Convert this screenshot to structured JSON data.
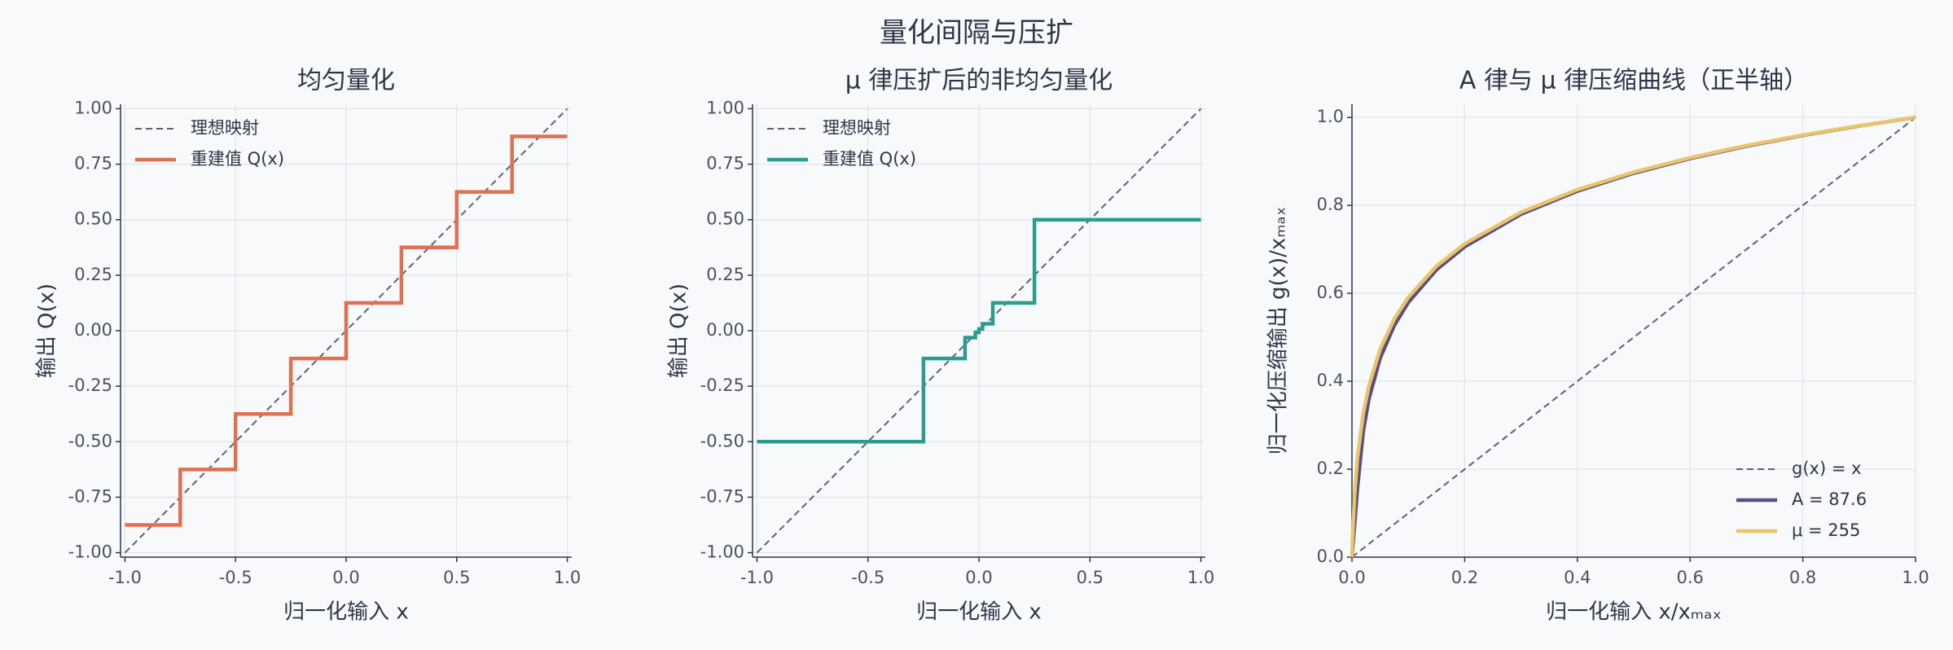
{
  "title": "量化间隔与压扩",
  "chart_data": [
    {
      "type": "line",
      "title": "均匀量化",
      "xlabel": "归一化输入 x",
      "ylabel": "输出 Q(x)",
      "xlim": [
        -1.02,
        1.02
      ],
      "ylim": [
        -1.02,
        1.02
      ],
      "grid": true,
      "legend": "upper left",
      "xticks": [
        {
          "value": -1,
          "label": "-1.0"
        },
        -0.5,
        {
          "value": 0,
          "label": "0.0"
        },
        0.5,
        {
          "value": 1,
          "label": "1.0"
        }
      ],
      "yticks": [
        {
          "value": 1,
          "label": "1.00"
        },
        0.75,
        {
          "value": 0.5,
          "label": "0.50"
        },
        0.25,
        {
          "value": 0,
          "label": "0.00"
        },
        -0.25,
        {
          "value": -0.5,
          "label": "-0.50"
        },
        -0.75,
        {
          "value": -1,
          "label": "-1.00"
        }
      ],
      "series": [
        {
          "name": "理想映射",
          "color": "#5d6175",
          "style": "dashed",
          "x": [
            -1,
            1
          ],
          "values": [
            -1,
            1
          ]
        },
        {
          "name": "重建值 Q(x)",
          "color": "#e07052",
          "style": "solid",
          "x": [
            -1,
            -0.75,
            -0.75,
            -0.5,
            -0.5,
            -0.25,
            -0.25,
            0,
            0,
            0.25,
            0.25,
            0.5,
            0.5,
            0.75,
            0.75,
            1
          ],
          "values": [
            -0.875,
            -0.875,
            -0.625,
            -0.625,
            -0.375,
            -0.375,
            -0.125,
            -0.125,
            0.125,
            0.125,
            0.375,
            0.375,
            0.625,
            0.625,
            0.875,
            0.875
          ]
        }
      ]
    },
    {
      "type": "line",
      "title": "μ 律压扩后的非均匀量化",
      "xlabel": "归一化输入 x",
      "ylabel": "输出 Q(x)",
      "xlim": [
        -1.02,
        1.02
      ],
      "ylim": [
        -1.02,
        1.02
      ],
      "grid": true,
      "legend": "upper left",
      "xticks": [
        {
          "value": -1,
          "label": "-1.0"
        },
        -0.5,
        {
          "value": 0,
          "label": "0.0"
        },
        0.5,
        {
          "value": 1,
          "label": "1.0"
        }
      ],
      "yticks": [
        {
          "value": 1,
          "label": "1.00"
        },
        0.75,
        {
          "value": 0.5,
          "label": "0.50"
        },
        0.25,
        {
          "value": 0,
          "label": "0.00"
        },
        -0.25,
        {
          "value": -0.5,
          "label": "-0.50"
        },
        -0.75,
        {
          "value": -1,
          "label": "-1.00"
        }
      ],
      "series": [
        {
          "name": "理想映射",
          "color": "#5d6175",
          "style": "dashed",
          "x": [
            -1,
            1
          ],
          "values": [
            -1,
            1
          ]
        },
        {
          "name": "重建值 Q(x)",
          "color": "#2a9d8f",
          "style": "solid",
          "x": [
            -1,
            -0.25,
            -0.25,
            -0.0625,
            -0.0625,
            -0.016,
            -0.016,
            0,
            0,
            0.016,
            0.016,
            0.0625,
            0.0625,
            0.25,
            0.25,
            1
          ],
          "values": [
            -0.5,
            -0.5,
            -0.125,
            -0.125,
            -0.031,
            -0.031,
            -0.008,
            -0.008,
            0.008,
            0.008,
            0.031,
            0.031,
            0.125,
            0.125,
            0.5,
            0.5
          ]
        }
      ]
    },
    {
      "type": "line",
      "title": "A 律与 μ 律压缩曲线（正半轴）",
      "xlabel": "归一化输入 x/xₘₐₓ",
      "ylabel": "归一化压缩输出 g(x)/xₘₐₓ",
      "xlim": [
        0,
        1
      ],
      "ylim": [
        0,
        1.03
      ],
      "grid": true,
      "legend": "lower right",
      "xticks": [
        {
          "value": 0,
          "label": "0.0"
        },
        0.2,
        0.4,
        0.6,
        0.8,
        {
          "value": 1,
          "label": "1.0"
        }
      ],
      "yticks": [
        {
          "value": 0,
          "label": "0.0"
        },
        0.2,
        0.4,
        0.6,
        0.8,
        {
          "value": 1,
          "label": "1.0"
        }
      ],
      "series": [
        {
          "name": "g(x) = x",
          "color": "#5d6175",
          "style": "dashed",
          "x": [
            0,
            1
          ],
          "values": [
            0,
            1
          ]
        },
        {
          "name": "A = 87.6",
          "color": "#5b4e80",
          "style": "solid",
          "x": [
            0,
            0.001,
            0.005,
            0.01,
            0.02,
            0.03,
            0.05,
            0.075,
            0.1,
            0.15,
            0.2,
            0.3,
            0.4,
            0.5,
            0.6,
            0.7,
            0.8,
            0.9,
            1
          ],
          "values": [
            0,
            0.016,
            0.08,
            0.16,
            0.2852,
            0.3593,
            0.4526,
            0.5267,
            0.5793,
            0.6536,
            0.7059,
            0.78,
            0.8326,
            0.8734,
            0.9066,
            0.9348,
            0.9592,
            0.9807,
            1
          ]
        },
        {
          "name": "μ = 255",
          "color": "#e9c46a",
          "style": "solid",
          "x": [
            0,
            0.001,
            0.005,
            0.01,
            0.02,
            0.03,
            0.05,
            0.075,
            0.1,
            0.15,
            0.2,
            0.3,
            0.4,
            0.5,
            0.6,
            0.7,
            0.8,
            0.9,
            1
          ],
          "values": [
            0,
            0.041,
            0.1482,
            0.2285,
            0.3261,
            0.3891,
            0.4727,
            0.5414,
            0.591,
            0.6618,
            0.7126,
            0.7845,
            0.8358,
            0.8757,
            0.9084,
            0.936,
            0.9599,
            0.9811,
            1
          ]
        }
      ]
    }
  ]
}
